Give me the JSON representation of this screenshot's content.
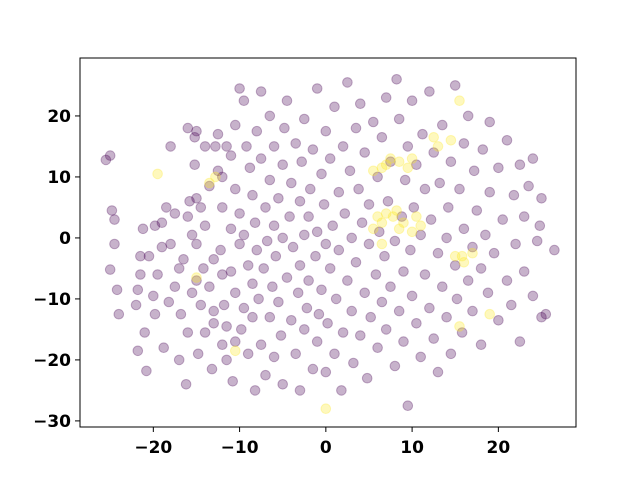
{
  "chart_data": {
    "type": "scatter",
    "title": "",
    "xlabel": "",
    "ylabel": "",
    "xlim": [
      -28.5,
      29
    ],
    "ylim": [
      -31,
      29.5
    ],
    "x_ticks": [
      -20,
      -10,
      0,
      10,
      20
    ],
    "y_ticks": [
      20,
      10,
      0,
      -10,
      -20,
      -30
    ],
    "x_tick_labels": [
      "−20",
      "−10",
      "0",
      "10",
      "20"
    ],
    "y_tick_labels": [
      "20",
      "10",
      "0",
      "−10",
      "−20",
      "−30"
    ],
    "grid": false,
    "legend": "none",
    "marker_opacity": 0.3,
    "colormap": "viridis",
    "colors": {
      "class_0": "#440154",
      "class_1": "#fde725"
    },
    "series": [
      {
        "class": 0,
        "color": "#440154",
        "points": [
          [
            -25.5,
            12.8
          ],
          [
            -25,
            13.5
          ],
          [
            -24.8,
            4.5
          ],
          [
            -24.5,
            -1
          ],
          [
            -24.2,
            -8.5
          ],
          [
            -25,
            -5.2
          ],
          [
            -24,
            -12.5
          ],
          [
            -24.5,
            3
          ],
          [
            -22,
            -11
          ],
          [
            -21.5,
            -6
          ],
          [
            -21.8,
            -8.5
          ],
          [
            -21.8,
            -18.5
          ],
          [
            -21.5,
            -3
          ],
          [
            -21.2,
            1.5
          ],
          [
            -21,
            -15.5
          ],
          [
            -20.8,
            -21.8
          ],
          [
            -20.5,
            -3
          ],
          [
            -20,
            -9.5
          ],
          [
            -19.8,
            -12.5
          ],
          [
            -19.5,
            -6
          ],
          [
            -19.8,
            2
          ],
          [
            -19,
            2.5
          ],
          [
            -19,
            -1.5
          ],
          [
            -18.8,
            -18
          ],
          [
            -18.5,
            5
          ],
          [
            -18,
            -1
          ],
          [
            -18,
            15
          ],
          [
            -18.2,
            -10.5
          ],
          [
            -17.5,
            -8
          ],
          [
            -17.5,
            4
          ],
          [
            -17,
            -5
          ],
          [
            -17,
            -20
          ],
          [
            -16.8,
            -12.5
          ],
          [
            -16.5,
            -3.5
          ],
          [
            -16.2,
            -24
          ],
          [
            -16,
            -15.5
          ],
          [
            -16,
            18
          ],
          [
            -16,
            3.5
          ],
          [
            -15.8,
            6
          ],
          [
            -15.5,
            -9
          ],
          [
            -15.5,
            0.5
          ],
          [
            -15.2,
            12
          ],
          [
            -15.2,
            16.5
          ],
          [
            -15,
            -1
          ],
          [
            -15,
            -7
          ],
          [
            -15,
            17.5
          ],
          [
            -15,
            6.5
          ],
          [
            -14.8,
            -19
          ],
          [
            -14.5,
            -11
          ],
          [
            -14.5,
            5
          ],
          [
            -14.2,
            -5
          ],
          [
            -14,
            15
          ],
          [
            -14,
            -15.5
          ],
          [
            -14,
            2
          ],
          [
            -13.5,
            -8
          ],
          [
            -13.5,
            8.5
          ],
          [
            -13.2,
            -21.5
          ],
          [
            -13,
            -12
          ],
          [
            -13,
            -3.5
          ],
          [
            -13,
            -14
          ],
          [
            -12.8,
            15
          ],
          [
            -12.5,
            11
          ],
          [
            -12.5,
            17
          ],
          [
            -12.2,
            -2
          ],
          [
            -12,
            -17.5
          ],
          [
            -12,
            -6
          ],
          [
            -12,
            5
          ],
          [
            -12,
            10
          ],
          [
            -11.8,
            -11
          ],
          [
            -11.5,
            -20
          ],
          [
            -11.5,
            15
          ],
          [
            -11.5,
            -14.5
          ],
          [
            -11,
            13.5
          ],
          [
            -11,
            1.5
          ],
          [
            -11,
            -5.5
          ],
          [
            -10.8,
            -23.5
          ],
          [
            -10.5,
            -9
          ],
          [
            -10.5,
            -17
          ],
          [
            -10.5,
            18.5
          ],
          [
            -10.5,
            8
          ],
          [
            -10,
            4
          ],
          [
            -10,
            24.5
          ],
          [
            -10,
            -1
          ],
          [
            -9.8,
            -15
          ],
          [
            -9.5,
            -11.5
          ],
          [
            -9.5,
            0.5
          ],
          [
            -9.5,
            22.5
          ],
          [
            -9.2,
            15
          ],
          [
            -9,
            -4.5
          ],
          [
            -9,
            -19
          ],
          [
            -8.8,
            11.5
          ],
          [
            -8.5,
            7
          ],
          [
            -8.5,
            -7.5
          ],
          [
            -8.5,
            -13
          ],
          [
            -8.2,
            2.5
          ],
          [
            -8.2,
            -25
          ],
          [
            -8,
            17.5
          ],
          [
            -8,
            -2
          ],
          [
            -7.8,
            -10
          ],
          [
            -7.5,
            24
          ],
          [
            -7.5,
            13
          ],
          [
            -7.5,
            -17.5
          ],
          [
            -7.2,
            -5
          ],
          [
            -7,
            5
          ],
          [
            -7,
            -22.5
          ],
          [
            -6.8,
            -0.5
          ],
          [
            -6.5,
            -13
          ],
          [
            -6.5,
            9.5
          ],
          [
            -6.5,
            20
          ],
          [
            -6.2,
            -8
          ],
          [
            -6,
            2
          ],
          [
            -6,
            15
          ],
          [
            -6,
            -19.5
          ],
          [
            -5.8,
            -3
          ],
          [
            -5.5,
            -10.5
          ],
          [
            -5.5,
            6.5
          ],
          [
            -5.2,
            -16
          ],
          [
            -5,
            12
          ],
          [
            -5,
            -24
          ],
          [
            -5,
            0
          ],
          [
            -4.8,
            18
          ],
          [
            -4.5,
            -6.5
          ],
          [
            -4.5,
            22.5
          ],
          [
            -4.2,
            3.5
          ],
          [
            -4,
            -13.5
          ],
          [
            -4,
            9
          ],
          [
            -3.8,
            -1.5
          ],
          [
            -3.5,
            -19
          ],
          [
            -3.5,
            15.5
          ],
          [
            -3.2,
            -9
          ],
          [
            -3,
            6
          ],
          [
            -3,
            -4.5
          ],
          [
            -3,
            -25
          ],
          [
            -2.8,
            12.5
          ],
          [
            -2.5,
            0.5
          ],
          [
            -2.5,
            -15
          ],
          [
            -2.5,
            19.5
          ],
          [
            -2.2,
            -11.5
          ],
          [
            -2,
            3.5
          ],
          [
            -2,
            -7
          ],
          [
            -1.8,
            8
          ],
          [
            -1.5,
            -21.5
          ],
          [
            -1.5,
            14.5
          ],
          [
            -1.2,
            -3
          ],
          [
            -1,
            -17
          ],
          [
            -1,
            24.5
          ],
          [
            -1,
            1
          ],
          [
            -0.8,
            -12.5
          ],
          [
            -0.5,
            10.5
          ],
          [
            -0.5,
            -8.5
          ],
          [
            -0.2,
            5.5
          ],
          [
            0,
            -22
          ],
          [
            0,
            17.5
          ],
          [
            0,
            -1
          ],
          [
            0.2,
            -14
          ],
          [
            0.5,
            -5
          ],
          [
            0.5,
            13
          ],
          [
            0.8,
            2
          ],
          [
            1,
            -19
          ],
          [
            1,
            21.5
          ],
          [
            1.2,
            -10
          ],
          [
            1.5,
            7.5
          ],
          [
            1.5,
            -2
          ],
          [
            1.8,
            -25
          ],
          [
            2,
            15
          ],
          [
            2,
            -15.5
          ],
          [
            2.2,
            4
          ],
          [
            2.5,
            -7
          ],
          [
            2.5,
            25.5
          ],
          [
            2.8,
            11
          ],
          [
            3,
            -12
          ],
          [
            3,
            0
          ],
          [
            3.2,
            -20.5
          ],
          [
            3.5,
            18
          ],
          [
            3.5,
            -4
          ],
          [
            3.8,
            8
          ],
          [
            4,
            -16
          ],
          [
            4,
            22
          ],
          [
            4.2,
            2.5
          ],
          [
            4.5,
            -9
          ],
          [
            4.5,
            14
          ],
          [
            4.8,
            -23
          ],
          [
            5,
            -1
          ],
          [
            5,
            5.5
          ],
          [
            5.2,
            -13
          ],
          [
            5.5,
            19
          ],
          [
            5.8,
            -6
          ],
          [
            6,
            10
          ],
          [
            6,
            -18
          ],
          [
            6.2,
            1
          ],
          [
            6.5,
            -10.5
          ],
          [
            6.5,
            16.5
          ],
          [
            6.8,
            -3
          ],
          [
            7,
            23
          ],
          [
            7,
            -15
          ],
          [
            7.2,
            6
          ],
          [
            7.5,
            -8
          ],
          [
            7.5,
            12.5
          ],
          [
            8,
            -21
          ],
          [
            8,
            -0.5
          ],
          [
            8.2,
            26
          ],
          [
            8.5,
            -12
          ],
          [
            8.5,
            19.5
          ],
          [
            8.8,
            3.5
          ],
          [
            9,
            -17
          ],
          [
            9,
            -5.5
          ],
          [
            9.2,
            9.5
          ],
          [
            9.5,
            -27.5
          ],
          [
            9.5,
            15
          ],
          [
            9.8,
            -2
          ],
          [
            10,
            -9.5
          ],
          [
            10,
            22.5
          ],
          [
            10.2,
            5
          ],
          [
            10.5,
            -14
          ],
          [
            10.5,
            12
          ],
          [
            11,
            -19.5
          ],
          [
            11,
            0.5
          ],
          [
            11.2,
            17
          ],
          [
            11.5,
            -6
          ],
          [
            11.5,
            8
          ],
          [
            12,
            -11.5
          ],
          [
            12,
            24
          ],
          [
            12.2,
            3
          ],
          [
            12.5,
            -16.5
          ],
          [
            12.5,
            14
          ],
          [
            13,
            -2.5
          ],
          [
            13,
            -22
          ],
          [
            13.2,
            9
          ],
          [
            13.5,
            -8
          ],
          [
            13.5,
            18.5
          ],
          [
            14,
            0
          ],
          [
            14,
            -13
          ],
          [
            14.2,
            5
          ],
          [
            14.5,
            -19
          ],
          [
            14.5,
            12.5
          ],
          [
            15,
            -4.5
          ],
          [
            15,
            25
          ],
          [
            15.2,
            -10
          ],
          [
            15.5,
            8
          ],
          [
            15.8,
            -15.5
          ],
          [
            16,
            1.5
          ],
          [
            16,
            15.5
          ],
          [
            16.5,
            -7
          ],
          [
            16.5,
            20
          ],
          [
            17,
            -1.5
          ],
          [
            17,
            -12
          ],
          [
            17.2,
            11
          ],
          [
            17.5,
            4.5
          ],
          [
            18,
            -17.5
          ],
          [
            18,
            -5
          ],
          [
            18.2,
            14.5
          ],
          [
            18.5,
            0.5
          ],
          [
            18.8,
            -9
          ],
          [
            19,
            7.5
          ],
          [
            19,
            19
          ],
          [
            19.5,
            -2.5
          ],
          [
            20,
            -13.5
          ],
          [
            20,
            11.5
          ],
          [
            20.5,
            3
          ],
          [
            21,
            -7
          ],
          [
            21,
            16
          ],
          [
            21.5,
            -11
          ],
          [
            21.8,
            7
          ],
          [
            22,
            -1
          ],
          [
            22.5,
            12
          ],
          [
            22.5,
            -17
          ],
          [
            23,
            -5.5
          ],
          [
            23,
            3.5
          ],
          [
            23.5,
            8.5
          ],
          [
            24,
            -9.5
          ],
          [
            24,
            13
          ],
          [
            24.5,
            -0.5
          ],
          [
            25,
            -13
          ],
          [
            25,
            6.5
          ],
          [
            26.5,
            -2
          ],
          [
            25.5,
            -12.5
          ],
          [
            24.8,
            2
          ]
        ]
      },
      {
        "class": 1,
        "color": "#fde725",
        "points": [
          [
            -19.5,
            10.5
          ],
          [
            -15,
            -6.5
          ],
          [
            -13.5,
            9
          ],
          [
            -12.8,
            10
          ],
          [
            -10.5,
            -18.5
          ],
          [
            0,
            -28
          ],
          [
            5.5,
            11
          ],
          [
            6.5,
            11.5
          ],
          [
            7,
            12
          ],
          [
            7.5,
            13
          ],
          [
            8.5,
            12.5
          ],
          [
            6,
            3.5
          ],
          [
            6.5,
            2.5
          ],
          [
            7,
            4
          ],
          [
            7.8,
            3.5
          ],
          [
            8.2,
            4.5
          ],
          [
            9,
            2.5
          ],
          [
            10,
            1
          ],
          [
            10.5,
            3.5
          ],
          [
            10,
            13
          ],
          [
            11,
            2
          ],
          [
            8.5,
            1.5
          ],
          [
            12.5,
            16.5
          ],
          [
            13,
            15
          ],
          [
            15.5,
            22.5
          ],
          [
            15,
            -3
          ],
          [
            15.8,
            -3
          ],
          [
            16,
            -4
          ],
          [
            17,
            -2.5
          ],
          [
            15.5,
            -14.5
          ],
          [
            19,
            -12.5
          ],
          [
            14.5,
            16
          ],
          [
            5.5,
            1.5
          ],
          [
            9.5,
            11.5
          ],
          [
            6.5,
            -1
          ]
        ]
      }
    ]
  }
}
